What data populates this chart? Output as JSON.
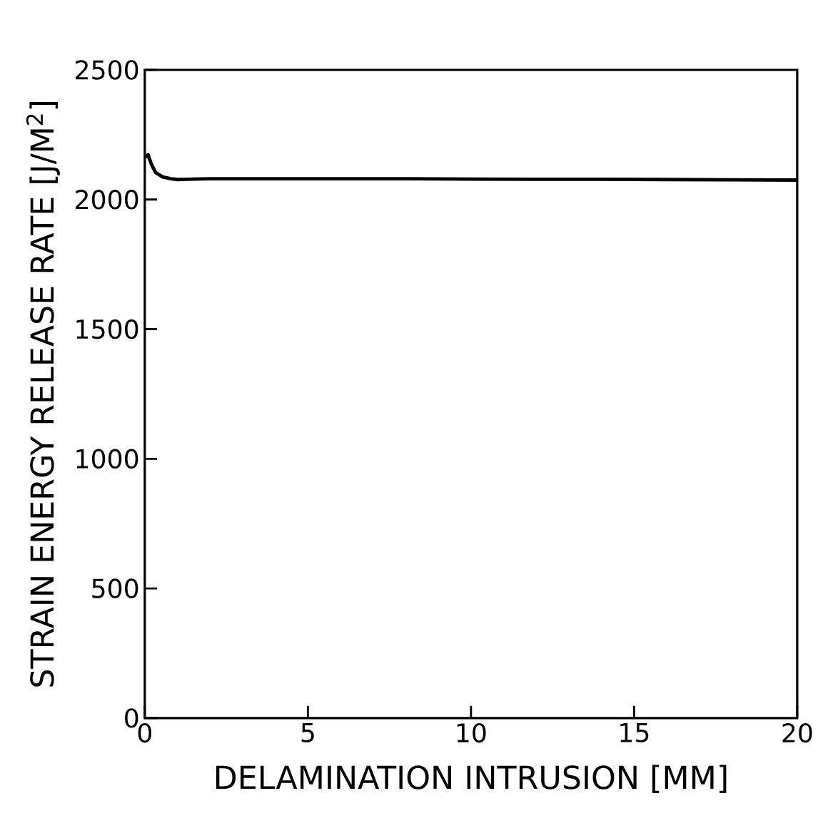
{
  "chart_data": {
    "type": "line",
    "xlabel": "DELAMINATION INTRUSION [MM]",
    "ylabel": "STRAIN ENERGY RELEASE RATE [J/M$^{2}$]",
    "x": [
      0.05,
      0.1,
      0.2,
      0.33,
      0.55,
      0.8,
      1.0,
      1.5,
      2,
      4,
      6,
      8,
      10,
      12,
      14,
      16,
      18,
      20
    ],
    "series": [
      {
        "color": "#000000",
        "values": [
          2160,
          2173,
          2137,
          2104,
          2087,
          2080,
          2077,
          2079,
          2080,
          2080,
          2080,
          2080,
          2079,
          2078,
          2078,
          2077,
          2076,
          2075
        ]
      }
    ],
    "xlim": [
      0,
      20
    ],
    "ylim": [
      0,
      2500
    ],
    "xticks": [
      0,
      5,
      10,
      15,
      20
    ],
    "yticks": [
      0,
      500,
      1000,
      1500,
      2000,
      2500
    ],
    "grid": false,
    "marker": "none",
    "line_style": "solid"
  }
}
